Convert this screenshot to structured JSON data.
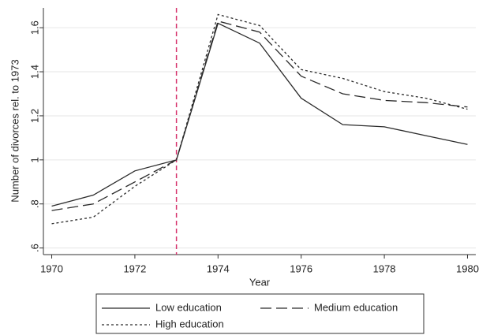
{
  "chart_data": {
    "type": "line",
    "x": [
      1970,
      1971,
      1972,
      1973,
      1974,
      1975,
      1976,
      1977,
      1978,
      1979,
      1980
    ],
    "series": [
      {
        "name": "Low education",
        "color": "#2b2b2b",
        "style": "solid",
        "values": [
          0.79,
          0.84,
          0.95,
          1.0,
          1.62,
          1.53,
          1.28,
          1.16,
          1.15,
          1.11,
          1.07
        ]
      },
      {
        "name": "Medium education",
        "color": "#2b2b2b",
        "style": "longdash",
        "values": [
          0.77,
          0.8,
          0.9,
          1.0,
          1.63,
          1.58,
          1.38,
          1.3,
          1.27,
          1.26,
          1.24
        ]
      },
      {
        "name": "High education",
        "color": "#2b2b2b",
        "style": "shortdash",
        "values": [
          0.71,
          0.74,
          0.88,
          1.0,
          1.66,
          1.61,
          1.41,
          1.37,
          1.31,
          1.28,
          1.23
        ]
      }
    ],
    "xlabel": "Year",
    "ylabel": "Number of divorces rel. to 1973",
    "xlim": [
      1969.8,
      1980.2
    ],
    "xticks": [
      1970,
      1972,
      1974,
      1976,
      1978,
      1980
    ],
    "ylim": [
      0.57,
      1.69
    ],
    "yticks": [
      {
        "value": 0.6,
        "label": ".6"
      },
      {
        "value": 0.8,
        "label": ".8"
      },
      1,
      1.2,
      1.4,
      1.6
    ],
    "vline": {
      "x": 1973,
      "color": "#d6336c"
    },
    "grid": true,
    "legend": "bottom"
  }
}
